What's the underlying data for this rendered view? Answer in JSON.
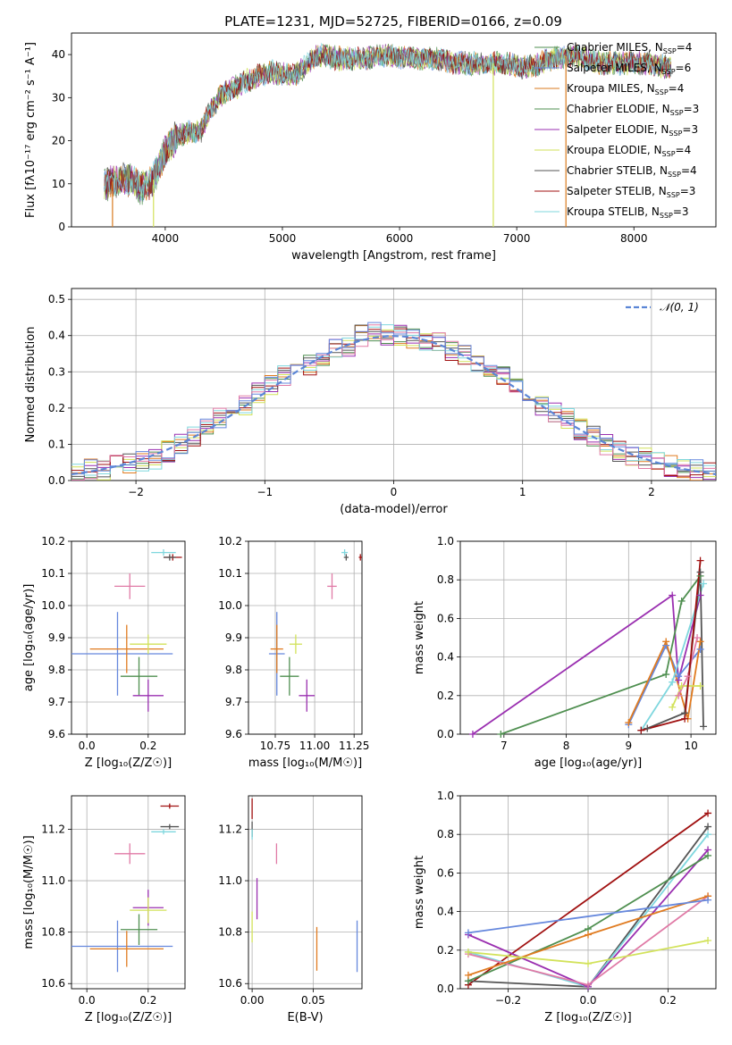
{
  "figure": {
    "title": "PLATE=1231, MJD=52725, FIBERID=0166, z=0.09"
  },
  "colors": [
    "#6688dd",
    "#e07b20",
    "#d97a1e",
    "#4f8f50",
    "#9a2fb0",
    "#d2e25a",
    "#555555",
    "#a01010",
    "#7fd7de",
    "#e07aa6"
  ],
  "chart_data": [
    {
      "id": "spectrum",
      "type": "line",
      "title": "PLATE=1231, MJD=52725, FIBERID=0166, z=0.09",
      "xlabel": "wavelength [Angstrom, rest frame]",
      "ylabel": "Flux [fλ10⁻¹⁷ erg cm⁻² s⁻¹ A⁻¹]",
      "xlim": [
        3200,
        8700
      ],
      "ylim": [
        0,
        45
      ],
      "xticks": [
        4000,
        5000,
        6000,
        7000,
        8000
      ],
      "yticks": [
        0,
        10,
        20,
        30,
        40
      ],
      "grid": false,
      "legend_position": "top-right",
      "continuum": {
        "x": [
          3500,
          3600,
          3700,
          3800,
          3900,
          4000,
          4100,
          4200,
          4300,
          4400,
          4500,
          4700,
          4900,
          5100,
          5300,
          5500,
          5700,
          5900,
          6100,
          6300,
          6500,
          6700,
          6900,
          7100,
          7300,
          7500,
          7700,
          7900,
          8100,
          8300
        ],
        "y": [
          10,
          11,
          11,
          9,
          11,
          18,
          21,
          22,
          22,
          28,
          31,
          34,
          36,
          35,
          40,
          39,
          39,
          40,
          39,
          39,
          38,
          38,
          38,
          37,
          39,
          40,
          38,
          38,
          38,
          37
        ]
      },
      "series": [
        {
          "name": "Chabrier MILES, N_SSP=4",
          "color": "#4f8f50"
        },
        {
          "name": "Salpeter MILES, N_SSP=6",
          "color": "#6688dd"
        },
        {
          "name": "Kroupa MILES, N_SSP=4",
          "color": "#d97a1e"
        },
        {
          "name": "Chabrier ELODIE, N_SSP=3",
          "color": "#4f8f50"
        },
        {
          "name": "Salpeter ELODIE, N_SSP=3",
          "color": "#9a2fb0"
        },
        {
          "name": "Kroupa ELODIE, N_SSP=4",
          "color": "#d2e25a"
        },
        {
          "name": "Chabrier STELIB, N_SSP=4",
          "color": "#555555"
        },
        {
          "name": "Salpeter STELIB, N_SSP=3",
          "color": "#a01010"
        },
        {
          "name": "Kroupa STELIB, N_SSP=3",
          "color": "#7fd7de"
        }
      ],
      "legend_labels": [
        {
          "main": "Chabrier MILES, N",
          "sub": "SSP",
          "tail": "=4"
        },
        {
          "main": "Salpeter MILES, N",
          "sub": "SSP",
          "tail": "=6"
        },
        {
          "main": "Kroupa MILES, N",
          "sub": "SSP",
          "tail": "=4"
        },
        {
          "main": "Chabrier ELODIE, N",
          "sub": "SSP",
          "tail": "=3"
        },
        {
          "main": "Salpeter ELODIE, N",
          "sub": "SSP",
          "tail": "=3"
        },
        {
          "main": "Kroupa ELODIE, N",
          "sub": "SSP",
          "tail": "=4"
        },
        {
          "main": "Chabrier STELIB, N",
          "sub": "SSP",
          "tail": "=4"
        },
        {
          "main": "Salpeter STELIB, N",
          "sub": "SSP",
          "tail": "=3"
        },
        {
          "main": "Kroupa STELIB, N",
          "sub": "SSP",
          "tail": "=3"
        }
      ],
      "drop_lines": [
        {
          "x": 3550,
          "color": "#d97a1e"
        },
        {
          "x": 3900,
          "color": "#d2e25a"
        },
        {
          "x": 6800,
          "color": "#d2e25a"
        },
        {
          "x": 7420,
          "color": "#d97a1e"
        }
      ]
    },
    {
      "id": "residuals",
      "type": "line",
      "xlabel": "(data-model)/error",
      "ylabel": "Normed distribution",
      "xlim": [
        -2.5,
        2.5
      ],
      "ylim": [
        0,
        0.53
      ],
      "xticks": [
        -2,
        -1,
        0,
        1,
        2
      ],
      "xtick_labels": [
        "−2",
        "−1",
        "0",
        "1",
        "2"
      ],
      "yticks": [
        0,
        0.1,
        0.2,
        0.3,
        0.4,
        0.5
      ],
      "grid": true,
      "legend_position": "top-right",
      "gaussian": {
        "name": "𝒩(0, 1)",
        "mean": 0,
        "sigma": 1,
        "color": "#5b86d6"
      },
      "histogram_envelope": {
        "x": [
          -2.5,
          -2.4,
          -2.3,
          -2.2,
          -2.1,
          -2.0,
          -1.9,
          -1.8,
          -1.7,
          -1.6,
          -1.5,
          -1.4,
          -1.3,
          -1.2,
          -1.1,
          -1.0,
          -0.9,
          -0.8,
          -0.7,
          -0.6,
          -0.5,
          -0.4,
          -0.3,
          -0.2,
          -0.1,
          0.0,
          0.1,
          0.2,
          0.3,
          0.4,
          0.5,
          0.6,
          0.7,
          0.8,
          0.9,
          1.0,
          1.1,
          1.2,
          1.3,
          1.4,
          1.5,
          1.6,
          1.7,
          1.8,
          1.9,
          2.0,
          2.1,
          2.2,
          2.3,
          2.4
        ],
        "y": [
          0.02,
          0.03,
          0.03,
          0.04,
          0.05,
          0.05,
          0.06,
          0.08,
          0.1,
          0.12,
          0.15,
          0.17,
          0.18,
          0.21,
          0.24,
          0.26,
          0.29,
          0.31,
          0.32,
          0.34,
          0.36,
          0.37,
          0.4,
          0.41,
          0.4,
          0.4,
          0.39,
          0.39,
          0.38,
          0.36,
          0.35,
          0.33,
          0.31,
          0.29,
          0.26,
          0.24,
          0.21,
          0.19,
          0.17,
          0.14,
          0.12,
          0.1,
          0.08,
          0.07,
          0.06,
          0.05,
          0.04,
          0.03,
          0.03,
          0.02
        ]
      },
      "series": [
        {
          "color": "#4f8f50"
        },
        {
          "color": "#e07b20"
        },
        {
          "color": "#d2e25a"
        },
        {
          "color": "#9a2fb0"
        },
        {
          "color": "#555555"
        },
        {
          "color": "#a01010"
        },
        {
          "color": "#7fd7de"
        },
        {
          "color": "#e07aa6"
        },
        {
          "color": "#6688dd"
        }
      ]
    },
    {
      "id": "age-vs-Z",
      "type": "scatter",
      "xlabel": "Z [log₁₀(Z/Z☉)]",
      "ylabel": "age  [log₁₀(age/yr)]",
      "xlim": [
        -0.05,
        0.32
      ],
      "ylim": [
        9.6,
        10.2
      ],
      "xticks": [
        0.0,
        0.2
      ],
      "xtick_labels": [
        "0.0",
        "0.2"
      ],
      "yticks": [
        9.6,
        9.7,
        9.8,
        9.9,
        10.0,
        10.1,
        10.2
      ],
      "grid": true,
      "points": [
        {
          "x": 0.1,
          "y": 9.85,
          "xerr": 0.18,
          "yerr": 0.13,
          "color": "#6688dd"
        },
        {
          "x": 0.13,
          "y": 9.865,
          "xerr": 0.12,
          "yerr": 0.075,
          "color": "#e07b20"
        },
        {
          "x": 0.17,
          "y": 9.78,
          "xerr": 0.06,
          "yerr": 0.06,
          "color": "#4f8f50"
        },
        {
          "x": 0.2,
          "y": 9.72,
          "xerr": 0.05,
          "yerr": 0.05,
          "color": "#9a2fb0"
        },
        {
          "x": 0.2,
          "y": 9.88,
          "xerr": 0.06,
          "yerr": 0.03,
          "color": "#d2e25a"
        },
        {
          "x": 0.14,
          "y": 10.06,
          "xerr": 0.05,
          "yerr": 0.04,
          "color": "#e07aa6"
        },
        {
          "x": 0.25,
          "y": 10.165,
          "xerr": 0.04,
          "yerr": 0.01,
          "color": "#7fd7de"
        },
        {
          "x": 0.28,
          "y": 10.15,
          "xerr": 0.03,
          "yerr": 0.01,
          "color": "#a01010"
        },
        {
          "x": 0.27,
          "y": 10.15,
          "xerr": 0.02,
          "yerr": 0.01,
          "color": "#555555"
        }
      ]
    },
    {
      "id": "age-vs-mass",
      "type": "scatter",
      "xlabel": "mass [log₁₀(M/M☉)]",
      "ylabel": "",
      "xlim": [
        10.58,
        11.3
      ],
      "ylim": [
        9.6,
        10.2
      ],
      "xticks": [
        10.75,
        11.0,
        11.25
      ],
      "xtick_labels": [
        "10.75",
        "11.00",
        "11.25"
      ],
      "yticks": [
        9.6,
        9.7,
        9.8,
        9.9,
        10.0,
        10.1,
        10.2
      ],
      "grid": true,
      "points": [
        {
          "x": 10.76,
          "y": 9.85,
          "xerr": 0.05,
          "yerr": 0.13,
          "color": "#6688dd"
        },
        {
          "x": 10.76,
          "y": 9.865,
          "xerr": 0.04,
          "yerr": 0.075,
          "color": "#e07b20"
        },
        {
          "x": 10.84,
          "y": 9.78,
          "xerr": 0.06,
          "yerr": 0.06,
          "color": "#4f8f50"
        },
        {
          "x": 10.95,
          "y": 9.72,
          "xerr": 0.05,
          "yerr": 0.05,
          "color": "#9a2fb0"
        },
        {
          "x": 10.88,
          "y": 9.88,
          "xerr": 0.04,
          "yerr": 0.03,
          "color": "#d2e25a"
        },
        {
          "x": 11.11,
          "y": 10.06,
          "xerr": 0.03,
          "yerr": 0.04,
          "color": "#e07aa6"
        },
        {
          "x": 11.19,
          "y": 10.165,
          "xerr": 0.02,
          "yerr": 0.01,
          "color": "#7fd7de"
        },
        {
          "x": 11.29,
          "y": 10.15,
          "xerr": 0.01,
          "yerr": 0.01,
          "color": "#a01010"
        },
        {
          "x": 11.2,
          "y": 10.15,
          "xerr": 0.015,
          "yerr": 0.01,
          "color": "#555555"
        }
      ]
    },
    {
      "id": "mass-weight-vs-age",
      "type": "line",
      "xlabel": "age  [log₁₀(age/yr)]",
      "ylabel": "mass weight",
      "xlim": [
        6.3,
        10.4
      ],
      "ylim": [
        0,
        1
      ],
      "xticks": [
        7,
        8,
        9,
        10
      ],
      "xtick_labels": [
        "7",
        "8",
        "9",
        "10"
      ],
      "yticks": [
        0,
        0.2,
        0.4,
        0.6,
        0.8,
        1.0
      ],
      "grid": true,
      "series": [
        {
          "color": "#9a2fb0",
          "x": [
            6.5,
            9.7,
            9.8,
            10.15
          ],
          "y": [
            0.0,
            0.72,
            0.28,
            0.72
          ]
        },
        {
          "color": "#4f8f50",
          "x": [
            6.95,
            9.6,
            9.85,
            10.15
          ],
          "y": [
            0.0,
            0.31,
            0.69,
            0.82
          ]
        },
        {
          "color": "#6688dd",
          "x": [
            9.0,
            9.6,
            9.8,
            10.15
          ],
          "y": [
            0.05,
            0.46,
            0.3,
            0.44
          ]
        },
        {
          "color": "#e07b20",
          "x": [
            9.0,
            9.6,
            9.95,
            10.15
          ],
          "y": [
            0.06,
            0.48,
            0.08,
            0.48
          ]
        },
        {
          "color": "#d2e25a",
          "x": [
            9.7,
            9.85,
            10.15
          ],
          "y": [
            0.14,
            0.25,
            0.25
          ]
        },
        {
          "color": "#e07aa6",
          "x": [
            9.8,
            9.95,
            10.1
          ],
          "y": [
            0.2,
            0.3,
            0.5
          ]
        },
        {
          "color": "#7fd7de",
          "x": [
            9.2,
            9.7,
            10.2
          ],
          "y": [
            0.02,
            0.27,
            0.78
          ]
        },
        {
          "color": "#555555",
          "x": [
            9.3,
            9.9,
            10.15,
            10.2
          ],
          "y": [
            0.03,
            0.11,
            0.84,
            0.04
          ]
        },
        {
          "color": "#a01010",
          "x": [
            9.2,
            9.9,
            10.15
          ],
          "y": [
            0.02,
            0.08,
            0.9
          ]
        }
      ]
    },
    {
      "id": "mass-vs-Z",
      "type": "scatter",
      "xlabel": "Z [log₁₀(Z/Z☉)]",
      "ylabel": "mass [log₁₀(M/M☉)]",
      "xlim": [
        -0.05,
        0.32
      ],
      "ylim": [
        10.58,
        11.33
      ],
      "xticks": [
        0.0,
        0.2
      ],
      "xtick_labels": [
        "0.0",
        "0.2"
      ],
      "yticks": [
        10.6,
        10.8,
        11.0,
        11.2
      ],
      "grid": true,
      "points": [
        {
          "x": 0.1,
          "y": 10.745,
          "xerr": 0.18,
          "yerr": 0.1,
          "color": "#6688dd"
        },
        {
          "x": 0.13,
          "y": 10.735,
          "xerr": 0.12,
          "yerr": 0.07,
          "color": "#e07b20"
        },
        {
          "x": 0.17,
          "y": 10.81,
          "xerr": 0.06,
          "yerr": 0.06,
          "color": "#4f8f50"
        },
        {
          "x": 0.2,
          "y": 10.895,
          "xerr": 0.05,
          "yerr": 0.07,
          "color": "#9a2fb0"
        },
        {
          "x": 0.2,
          "y": 10.885,
          "xerr": 0.06,
          "yerr": 0.05,
          "color": "#d2e25a"
        },
        {
          "x": 0.14,
          "y": 11.105,
          "xerr": 0.05,
          "yerr": 0.04,
          "color": "#e07aa6"
        },
        {
          "x": 0.25,
          "y": 11.19,
          "xerr": 0.04,
          "yerr": 0.01,
          "color": "#7fd7de"
        },
        {
          "x": 0.27,
          "y": 11.29,
          "xerr": 0.03,
          "yerr": 0.01,
          "color": "#a01010"
        },
        {
          "x": 0.27,
          "y": 11.21,
          "xerr": 0.03,
          "yerr": 0.01,
          "color": "#555555"
        }
      ]
    },
    {
      "id": "mass-vs-ebv",
      "type": "scatter",
      "xlabel": "E(B-V)",
      "ylabel": "",
      "xlim": [
        -0.003,
        0.09
      ],
      "ylim": [
        10.58,
        11.33
      ],
      "xticks": [
        0.0,
        0.05
      ],
      "xtick_labels": [
        "0.00",
        "0.05"
      ],
      "yticks": [
        10.6,
        10.8,
        11.0,
        11.2
      ],
      "grid": true,
      "points": [
        {
          "x": 0.086,
          "y": 10.745,
          "yerr": 0.1,
          "color": "#6688dd"
        },
        {
          "x": 0.053,
          "y": 10.735,
          "yerr": 0.085,
          "color": "#e07b20"
        },
        {
          "x": 0.0,
          "y": 10.82,
          "yerr": 0.06,
          "color": "#d2e25a"
        },
        {
          "x": 0.004,
          "y": 10.93,
          "yerr": 0.08,
          "color": "#9a2fb0"
        },
        {
          "x": 0.02,
          "y": 11.105,
          "yerr": 0.04,
          "color": "#e07aa6"
        },
        {
          "x": 0.0,
          "y": 11.28,
          "yerr": 0.04,
          "color": "#a01010"
        },
        {
          "x": 0.0,
          "y": 11.2,
          "yerr": 0.03,
          "color": "#555555"
        },
        {
          "x": 0.0,
          "y": 11.18,
          "yerr": 0.02,
          "color": "#7fd7de"
        }
      ]
    },
    {
      "id": "mass-weight-vs-Z",
      "type": "line",
      "xlabel": "Z [log₁₀(Z/Z☉)]",
      "ylabel": "mass weight",
      "xlim": [
        -0.32,
        0.32
      ],
      "ylim": [
        0,
        1
      ],
      "xticks": [
        -0.2,
        0.0,
        0.2
      ],
      "xtick_labels": [
        "−0.2",
        "0.0",
        "0.2"
      ],
      "yticks": [
        0,
        0.2,
        0.4,
        0.6,
        0.8,
        1.0
      ],
      "grid": true,
      "series": [
        {
          "color": "#a01010",
          "x": [
            -0.3,
            0.3
          ],
          "y": [
            0.02,
            0.91
          ]
        },
        {
          "color": "#555555",
          "x": [
            -0.3,
            0.0,
            0.3
          ],
          "y": [
            0.04,
            0.01,
            0.84
          ]
        },
        {
          "color": "#7fd7de",
          "x": [
            -0.3,
            0.0,
            0.3
          ],
          "y": [
            0.19,
            0.01,
            0.8
          ]
        },
        {
          "color": "#9a2fb0",
          "x": [
            -0.3,
            0.0,
            0.3
          ],
          "y": [
            0.28,
            0.01,
            0.72
          ]
        },
        {
          "color": "#4f8f50",
          "x": [
            -0.3,
            0.0,
            0.3
          ],
          "y": [
            0.04,
            0.31,
            0.69
          ]
        },
        {
          "color": "#e07aa6",
          "x": [
            -0.3,
            0.0,
            0.3
          ],
          "y": [
            0.18,
            0.02,
            0.48
          ]
        },
        {
          "color": "#e07b20",
          "x": [
            -0.3,
            0.0,
            0.3
          ],
          "y": [
            0.07,
            0.28,
            0.48
          ]
        },
        {
          "color": "#6688dd",
          "x": [
            -0.3,
            0.3
          ],
          "y": [
            0.29,
            0.46
          ]
        },
        {
          "color": "#d2e25a",
          "x": [
            -0.3,
            0.0,
            0.3
          ],
          "y": [
            0.19,
            0.13,
            0.25
          ]
        }
      ]
    }
  ]
}
